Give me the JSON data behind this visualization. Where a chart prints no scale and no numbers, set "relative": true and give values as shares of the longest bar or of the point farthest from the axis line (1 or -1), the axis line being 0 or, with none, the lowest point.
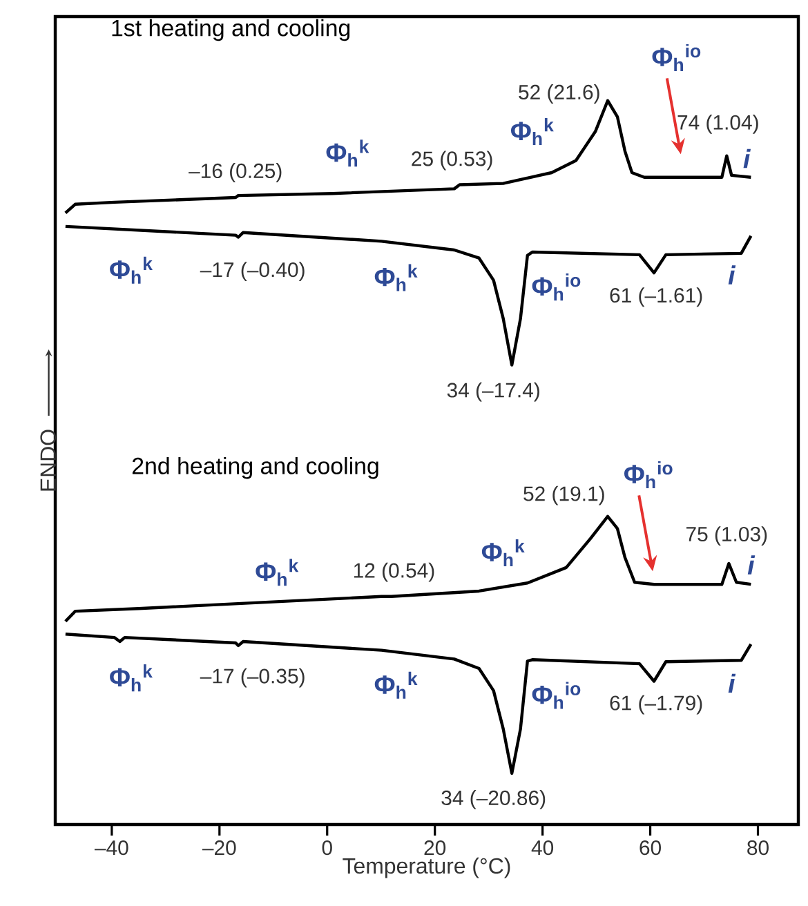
{
  "chart_data": {
    "type": "line",
    "relative": true,
    "tick_labels": "x",
    "xlabel": "Temperature (°C)",
    "ylabel": "ENDO",
    "xlim": [
      -50.5,
      87.5
    ],
    "xticks": [
      {
        "value": -40,
        "label": "–40"
      },
      {
        "value": -20,
        "label": "–20"
      },
      0,
      20,
      40,
      60,
      80
    ],
    "series": [
      {
        "color": "#000000",
        "x": [
          -48.6,
          -46.8,
          -39.5,
          -17.0,
          -16.5,
          1.0,
          23.6,
          24.6,
          32.7,
          41.7,
          46.2,
          49.8,
          52.1,
          53.9,
          55.3,
          56.6,
          58.9,
          73.3,
          74.2,
          75.1,
          78.7
        ],
        "values": [
          0.833,
          0.846,
          0.849,
          0.856,
          0.859,
          0.862,
          0.869,
          0.875,
          0.877,
          0.893,
          0.911,
          0.954,
          1.0,
          0.976,
          0.925,
          0.893,
          0.886,
          0.886,
          0.918,
          0.889,
          0.886
        ]
      },
      {
        "color": "#000000",
        "x": [
          -48.6,
          -17.0,
          -16.5,
          -15.6,
          10.1,
          23.6,
          28.2,
          30.9,
          32.7,
          34.3,
          35.9,
          37.2,
          38.1,
          58.0,
          60.7,
          62.9,
          76.9,
          78.7
        ],
        "values": [
          0.813,
          0.8,
          0.797,
          0.804,
          0.791,
          0.778,
          0.766,
          0.733,
          0.676,
          0.607,
          0.676,
          0.77,
          0.775,
          0.771,
          0.744,
          0.771,
          0.773,
          0.799
        ]
      },
      {
        "color": "#000000",
        "x": [
          -48.6,
          -46.8,
          -35.0,
          10.1,
          11.9,
          28.2,
          37.2,
          44.4,
          48.9,
          52.1,
          53.9,
          55.3,
          57.1,
          60.7,
          73.3,
          74.6,
          76.0,
          78.7
        ],
        "values": [
          0.226,
          0.241,
          0.245,
          0.263,
          0.263,
          0.271,
          0.283,
          0.306,
          0.349,
          0.382,
          0.364,
          0.321,
          0.284,
          0.281,
          0.281,
          0.312,
          0.284,
          0.281
        ]
      },
      {
        "color": "#000000",
        "x": [
          -48.6,
          -39.5,
          -38.5,
          -37.6,
          -17.0,
          -16.5,
          -15.6,
          10.1,
          23.6,
          28.2,
          30.9,
          32.7,
          34.3,
          35.9,
          37.2,
          38.1,
          58.0,
          60.7,
          62.9,
          76.9,
          78.7
        ],
        "values": [
          0.207,
          0.202,
          0.196,
          0.202,
          0.194,
          0.19,
          0.196,
          0.183,
          0.17,
          0.156,
          0.123,
          0.066,
          0.0,
          0.066,
          0.167,
          0.169,
          0.163,
          0.137,
          0.166,
          0.168,
          0.192
        ]
      }
    ],
    "annotations": [
      "1st heating and cooling",
      "2nd heating and cooling",
      "52 (21.6)",
      "74 (1.04)",
      "–16 (0.25)",
      "25 (0.53)",
      "–17 (–0.40)",
      "34 (–17.4)",
      "61 (–1.61)",
      "52 (19.1)",
      "75 (1.03)",
      "12 (0.54)",
      "–17 (–0.35)",
      "34 (–20.86)",
      "61 (–1.79)",
      "Φ$_{h}$$^{io}$",
      "Φ$_{h}$$^{k}$",
      "Φ$_{h}$$^{k}$",
      "Φ$_{h}$$^{k}$",
      "Φ$_{h}$$^{k}$",
      "Φ$_{h}$$^{io}$",
      "Φ$_{h}$$^{io}$",
      "Φ$_{h}$$^{k}$",
      "Φ$_{h}$$^{k}$",
      "Φ$_{h}$$^{k}$",
      "Φ$_{h}$$^{k}$",
      "Φ$_{h}$$^{io}$",
      "i",
      "i",
      "i",
      "i"
    ]
  }
}
